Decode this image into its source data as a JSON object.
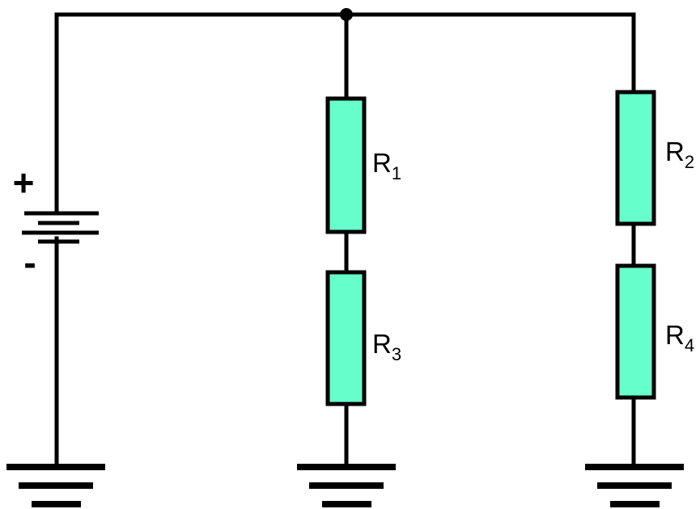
{
  "diagram": {
    "background": "#ffffff",
    "line_color": "#000000",
    "resistor_fill": "#66ffcc",
    "battery": {
      "positive_symbol": "+",
      "negative_symbol": "-"
    },
    "resistors": [
      {
        "id": "R1",
        "letter": "R",
        "subscript": "1"
      },
      {
        "id": "R3",
        "letter": "R",
        "subscript": "3"
      },
      {
        "id": "R2",
        "letter": "R",
        "subscript": "2"
      },
      {
        "id": "R4",
        "letter": "R",
        "subscript": "4"
      }
    ],
    "junction_count": 1,
    "ground_count": 3
  }
}
